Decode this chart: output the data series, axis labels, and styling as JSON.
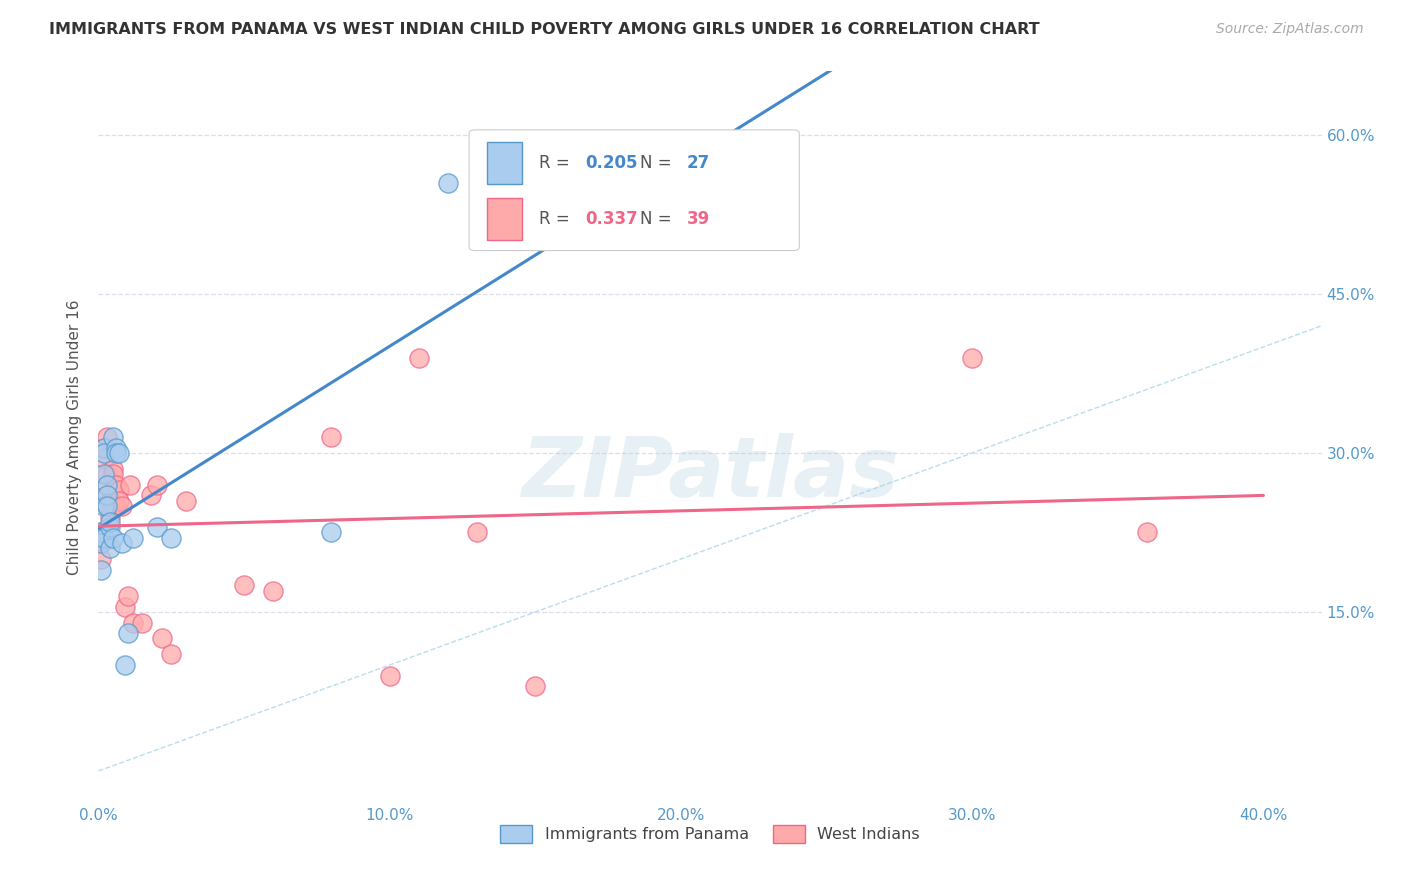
{
  "title": "IMMIGRANTS FROM PANAMA VS WEST INDIAN CHILD POVERTY AMONG GIRLS UNDER 16 CORRELATION CHART",
  "source": "Source: ZipAtlas.com",
  "ylabel": "Child Poverty Among Girls Under 16",
  "xlim": [
    0.0,
    0.42
  ],
  "ylim": [
    -0.03,
    0.66
  ],
  "xticks": [
    0.0,
    0.1,
    0.2,
    0.3,
    0.4
  ],
  "xticklabels": [
    "0.0%",
    "10.0%",
    "20.0%",
    "30.0%",
    "40.0%"
  ],
  "yticks": [
    0.15,
    0.3,
    0.45,
    0.6
  ],
  "yticklabels": [
    "15.0%",
    "30.0%",
    "45.0%",
    "60.0%"
  ],
  "r1": "0.205",
  "n1": "27",
  "r2": "0.337",
  "n2": "39",
  "legend1_label": "Immigrants from Panama",
  "legend2_label": "West Indians",
  "panama_x": [
    0.001,
    0.001,
    0.001,
    0.002,
    0.002,
    0.002,
    0.002,
    0.002,
    0.003,
    0.003,
    0.003,
    0.004,
    0.004,
    0.004,
    0.005,
    0.005,
    0.006,
    0.006,
    0.007,
    0.008,
    0.009,
    0.01,
    0.012,
    0.02,
    0.025,
    0.08,
    0.12
  ],
  "panama_y": [
    0.225,
    0.215,
    0.19,
    0.305,
    0.3,
    0.28,
    0.25,
    0.22,
    0.27,
    0.26,
    0.25,
    0.23,
    0.235,
    0.21,
    0.315,
    0.22,
    0.305,
    0.3,
    0.3,
    0.215,
    0.1,
    0.13,
    0.22,
    0.23,
    0.22,
    0.225,
    0.555
  ],
  "westindian_x": [
    0.001,
    0.001,
    0.001,
    0.002,
    0.002,
    0.002,
    0.002,
    0.003,
    0.003,
    0.003,
    0.004,
    0.004,
    0.005,
    0.005,
    0.005,
    0.006,
    0.006,
    0.007,
    0.007,
    0.008,
    0.009,
    0.01,
    0.011,
    0.012,
    0.015,
    0.018,
    0.02,
    0.022,
    0.025,
    0.03,
    0.05,
    0.06,
    0.08,
    0.1,
    0.11,
    0.13,
    0.15,
    0.3,
    0.36
  ],
  "westindian_y": [
    0.225,
    0.215,
    0.2,
    0.305,
    0.295,
    0.265,
    0.22,
    0.315,
    0.28,
    0.25,
    0.255,
    0.24,
    0.285,
    0.28,
    0.25,
    0.27,
    0.25,
    0.265,
    0.255,
    0.25,
    0.155,
    0.165,
    0.27,
    0.14,
    0.14,
    0.26,
    0.27,
    0.125,
    0.11,
    0.255,
    0.175,
    0.17,
    0.315,
    0.09,
    0.39,
    0.225,
    0.08,
    0.39,
    0.225
  ],
  "panama_color": "#AACCEE",
  "westindian_color": "#FFAAAA",
  "panama_edge_color": "#5599CC",
  "westindian_edge_color": "#EE6688",
  "panama_line_color": "#4488CC",
  "westindian_line_color": "#EE6688",
  "diagonal_color": "#BBDDEE",
  "grid_color": "#DDDDEE",
  "bg_color": "#FFFFFF",
  "title_color": "#333333",
  "source_color": "#AAAAAA",
  "tick_color": "#5599CC",
  "ylabel_color": "#555555"
}
